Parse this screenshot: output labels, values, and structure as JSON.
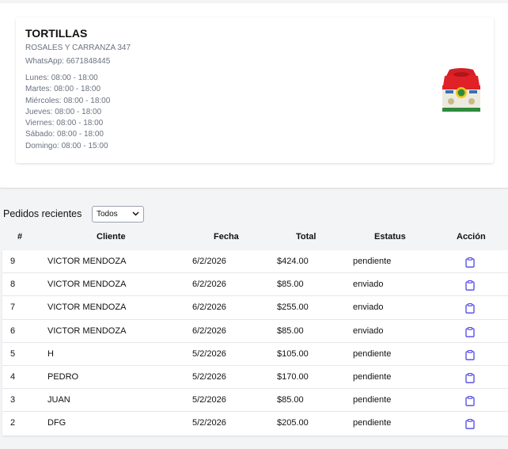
{
  "store": {
    "name": "TORTILLAS",
    "address": "ROSALES Y CARRANZA 347",
    "whatsapp": "WhatsApp: 6671848445",
    "hours": [
      "Lunes: 08:00 - 18:00",
      "Martes: 08:00 - 18:00",
      "Miércoles: 08:00 - 18:00",
      "Jueves: 08:00 - 18:00",
      "Viernes: 08:00 - 18:00",
      "Sábado: 08:00 - 18:00",
      "Domingo: 08:00 - 15:00"
    ],
    "image_icon": "tortilla-package-image"
  },
  "orders": {
    "title": "Pedidos recientes",
    "filter": {
      "selected": "Todos"
    },
    "columns": [
      "#",
      "Cliente",
      "Fecha",
      "Total",
      "Estatus",
      "Acción"
    ],
    "rows": [
      {
        "id": "9",
        "client": "VICTOR MENDOZA",
        "date": "6/2/2026",
        "total": "$424.00",
        "status": "pendiente"
      },
      {
        "id": "8",
        "client": "VICTOR MENDOZA",
        "date": "6/2/2026",
        "total": "$85.00",
        "status": "enviado"
      },
      {
        "id": "7",
        "client": "VICTOR MENDOZA",
        "date": "6/2/2026",
        "total": "$255.00",
        "status": "enviado"
      },
      {
        "id": "6",
        "client": "VICTOR MENDOZA",
        "date": "6/2/2026",
        "total": "$85.00",
        "status": "enviado"
      },
      {
        "id": "5",
        "client": "H",
        "date": "5/2/2026",
        "total": "$105.00",
        "status": "pendiente"
      },
      {
        "id": "4",
        "client": "PEDRO",
        "date": "5/2/2026",
        "total": "$170.00",
        "status": "pendiente"
      },
      {
        "id": "3",
        "client": "JUAN",
        "date": "5/2/2026",
        "total": "$85.00",
        "status": "pendiente"
      },
      {
        "id": "2",
        "client": "DFG",
        "date": "5/2/2026",
        "total": "$205.00",
        "status": "pendiente"
      }
    ],
    "action_icon": "clipboard-icon"
  },
  "colors": {
    "accent": "#4f46e5",
    "muted_text": "#6b7280",
    "page_bg": "#f3f4f6"
  }
}
